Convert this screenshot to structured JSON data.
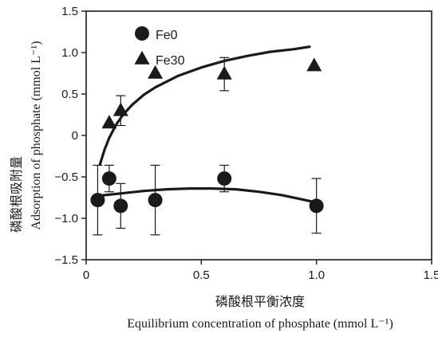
{
  "chart_data": {
    "type": "scatter",
    "xlabel_cn": "磷酸根平衡浓度",
    "xlabel_en": "Equilibrium concentration of phosphate (mmol L⁻¹)",
    "ylabel_cn": "磷酸根吸附量",
    "ylabel_en": "Adsorption of phosphate (mmol L⁻¹)",
    "xlim": [
      0,
      1.5
    ],
    "ylim": [
      -1.5,
      1.5
    ],
    "xticks": [
      0,
      0.5,
      1.0,
      1.5
    ],
    "xtick_labels": [
      "0",
      "0.5",
      "1.0",
      "1.5"
    ],
    "yticks": [
      -1.5,
      -1.0,
      -0.5,
      0,
      0.5,
      1.0,
      1.5
    ],
    "ytick_labels": [
      "−1.5",
      "−1.0",
      "−0.5",
      "0",
      "0.5",
      "1.0",
      "1.5"
    ],
    "grid": false,
    "legend_position": "top-left",
    "series": [
      {
        "name": "Fe0",
        "marker": "circle",
        "color": "#1a1a1a",
        "points": [
          {
            "x": 0.05,
            "y": -0.78,
            "err": 0.42
          },
          {
            "x": 0.1,
            "y": -0.52,
            "err": 0.16
          },
          {
            "x": 0.15,
            "y": -0.85,
            "err": 0.27
          },
          {
            "x": 0.3,
            "y": -0.78,
            "err": 0.42
          },
          {
            "x": 0.6,
            "y": -0.52,
            "err": 0.16
          },
          {
            "x": 1.0,
            "y": -0.85,
            "err": 0.33
          }
        ],
        "fit": [
          {
            "x": 0.05,
            "y": -0.73
          },
          {
            "x": 0.15,
            "y": -0.7
          },
          {
            "x": 0.25,
            "y": -0.67
          },
          {
            "x": 0.35,
            "y": -0.65
          },
          {
            "x": 0.45,
            "y": -0.64
          },
          {
            "x": 0.55,
            "y": -0.64
          },
          {
            "x": 0.65,
            "y": -0.65
          },
          {
            "x": 0.75,
            "y": -0.68
          },
          {
            "x": 0.85,
            "y": -0.72
          },
          {
            "x": 0.95,
            "y": -0.78
          },
          {
            "x": 1.0,
            "y": -0.81
          }
        ]
      },
      {
        "name": "Fe30",
        "marker": "triangle",
        "color": "#1a1a1a",
        "points": [
          {
            "x": 0.1,
            "y": 0.15,
            "err": 0.0
          },
          {
            "x": 0.15,
            "y": 0.3,
            "err": 0.18
          },
          {
            "x": 0.3,
            "y": 0.75,
            "err": 0.0
          },
          {
            "x": 0.6,
            "y": 0.74,
            "err": 0.2
          },
          {
            "x": 0.99,
            "y": 0.84,
            "err": 0.0
          }
        ],
        "fit": [
          {
            "x": 0.06,
            "y": -0.35
          },
          {
            "x": 0.08,
            "y": -0.17
          },
          {
            "x": 0.1,
            "y": -0.03
          },
          {
            "x": 0.13,
            "y": 0.13
          },
          {
            "x": 0.16,
            "y": 0.25
          },
          {
            "x": 0.2,
            "y": 0.37
          },
          {
            "x": 0.25,
            "y": 0.49
          },
          {
            "x": 0.3,
            "y": 0.58
          },
          {
            "x": 0.4,
            "y": 0.72
          },
          {
            "x": 0.5,
            "y": 0.82
          },
          {
            "x": 0.6,
            "y": 0.9
          },
          {
            "x": 0.7,
            "y": 0.96
          },
          {
            "x": 0.8,
            "y": 1.01
          },
          {
            "x": 0.9,
            "y": 1.04
          },
          {
            "x": 0.97,
            "y": 1.07
          }
        ]
      }
    ]
  }
}
